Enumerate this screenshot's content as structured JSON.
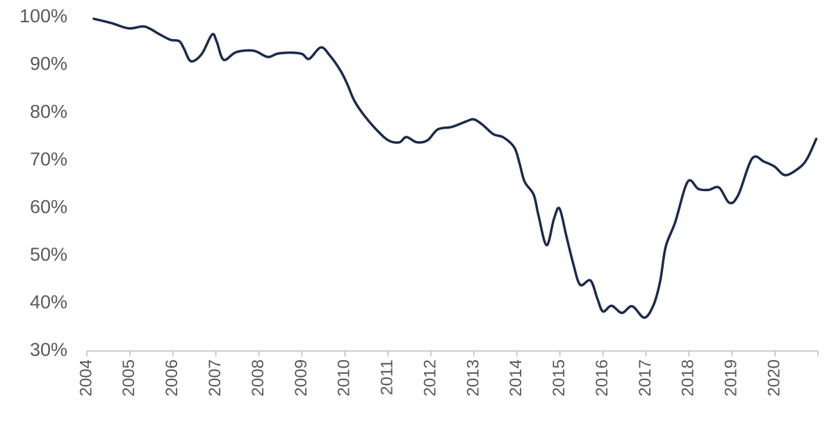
{
  "chart_data": {
    "type": "line",
    "x": [
      2004.16,
      2004.57,
      2004.97,
      2005.29,
      2005.45,
      2005.7,
      2005.94,
      2006.15,
      2006.26,
      2006.42,
      2006.67,
      2006.91,
      2007.02,
      2007.18,
      2007.47,
      2007.88,
      2008.2,
      2008.44,
      2008.77,
      2009.01,
      2009.17,
      2009.44,
      2009.65,
      2009.9,
      2010.06,
      2010.22,
      2010.46,
      2010.79,
      2011.03,
      2011.27,
      2011.43,
      2011.67,
      2011.92,
      2012.16,
      2012.48,
      2012.8,
      2013.0,
      2013.21,
      2013.45,
      2013.69,
      2013.94,
      2014.06,
      2014.18,
      2014.39,
      2014.5,
      2014.69,
      2014.86,
      2014.99,
      2015.15,
      2015.31,
      2015.47,
      2015.71,
      2015.87,
      2016.0,
      2016.2,
      2016.44,
      2016.68,
      2016.96,
      2017.17,
      2017.33,
      2017.46,
      2017.68,
      2017.97,
      2018.22,
      2018.46,
      2018.7,
      2018.94,
      2019.15,
      2019.47,
      2019.75,
      2019.99,
      2020.24,
      2020.56,
      2020.75,
      2020.96
    ],
    "series": [
      {
        "color": "#1b2a4c",
        "values": [
          99.7,
          98.8,
          97.7,
          98.1,
          97.7,
          96.4,
          95.3,
          95.0,
          93.4,
          90.8,
          92.3,
          96.4,
          94.9,
          91.1,
          92.7,
          93.0,
          91.7,
          92.4,
          92.6,
          92.3,
          91.3,
          93.7,
          92.0,
          88.8,
          85.9,
          82.5,
          79.3,
          75.9,
          74.1,
          73.8,
          74.9,
          73.8,
          74.2,
          76.5,
          77.0,
          78.1,
          78.6,
          77.4,
          75.5,
          74.8,
          72.7,
          69.4,
          65.5,
          62.8,
          58.5,
          52.2,
          57.7,
          59.9,
          54.1,
          48.3,
          43.9,
          44.8,
          41.0,
          38.3,
          39.5,
          38.0,
          39.4,
          37.0,
          39.5,
          44.6,
          51.9,
          57.0,
          65.5,
          64.0,
          63.8,
          64.3,
          61.1,
          62.8,
          70.4,
          69.7,
          68.7,
          66.9,
          68.4,
          70.4,
          74.5
        ]
      }
    ],
    "xlim": [
      2004,
      2021
    ],
    "xticks": [
      2004,
      2005,
      2006,
      2007,
      2008,
      2009,
      2010,
      2011,
      2012,
      2013,
      2014,
      2015,
      2016,
      2017,
      2018,
      2019,
      2020
    ],
    "ylim": [
      30,
      100
    ],
    "yticks": [
      {
        "value": 30,
        "label": "30%"
      },
      {
        "value": 40,
        "label": "40%"
      },
      {
        "value": 50,
        "label": "50%"
      },
      {
        "value": 60,
        "label": "60%"
      },
      {
        "value": 70,
        "label": "70%"
      },
      {
        "value": 80,
        "label": "80%"
      },
      {
        "value": 90,
        "label": "90%"
      },
      {
        "value": 100,
        "label": "100%"
      }
    ],
    "grid": false
  }
}
